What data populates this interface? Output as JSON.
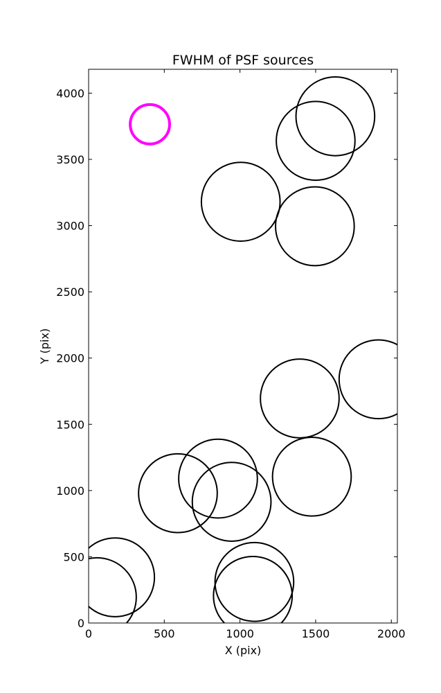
{
  "chart_data": {
    "type": "scatter",
    "title": "FWHM of PSF sources",
    "xlabel": "X (pix)",
    "ylabel": "Y (pix)",
    "xlim": [
      0,
      2040
    ],
    "ylim": [
      0,
      4180
    ],
    "xticks": [
      "0",
      "500",
      "1000",
      "1500",
      "2000"
    ],
    "yticks": [
      "0",
      "500",
      "1000",
      "1500",
      "2000",
      "2500",
      "3000",
      "3500",
      "4000"
    ],
    "grid": false,
    "marker": "circle",
    "series": [
      {
        "color": "#000000",
        "points": [
          {
            "x": 1630,
            "y": 3825,
            "fwhm": 1000
          },
          {
            "x": 1500,
            "y": 3640,
            "fwhm": 1000
          },
          {
            "x": 1005,
            "y": 3180,
            "fwhm": 1000
          },
          {
            "x": 1495,
            "y": 2995,
            "fwhm": 1000
          },
          {
            "x": 1915,
            "y": 1840,
            "fwhm": 1000
          },
          {
            "x": 1395,
            "y": 1695,
            "fwhm": 1000
          },
          {
            "x": 1475,
            "y": 1105,
            "fwhm": 1000
          },
          {
            "x": 855,
            "y": 1090,
            "fwhm": 1000
          },
          {
            "x": 590,
            "y": 980,
            "fwhm": 1000
          },
          {
            "x": 945,
            "y": 915,
            "fwhm": 1000
          },
          {
            "x": 175,
            "y": 345,
            "fwhm": 1000
          },
          {
            "x": 55,
            "y": 195,
            "fwhm": 1000
          },
          {
            "x": 1095,
            "y": 310,
            "fwhm": 1000
          },
          {
            "x": 1085,
            "y": 205,
            "fwhm": 1000
          }
        ]
      },
      {
        "color": "#ff00ff",
        "points": [
          {
            "x": 405,
            "y": 3765,
            "fwhm": 500
          }
        ]
      }
    ]
  }
}
